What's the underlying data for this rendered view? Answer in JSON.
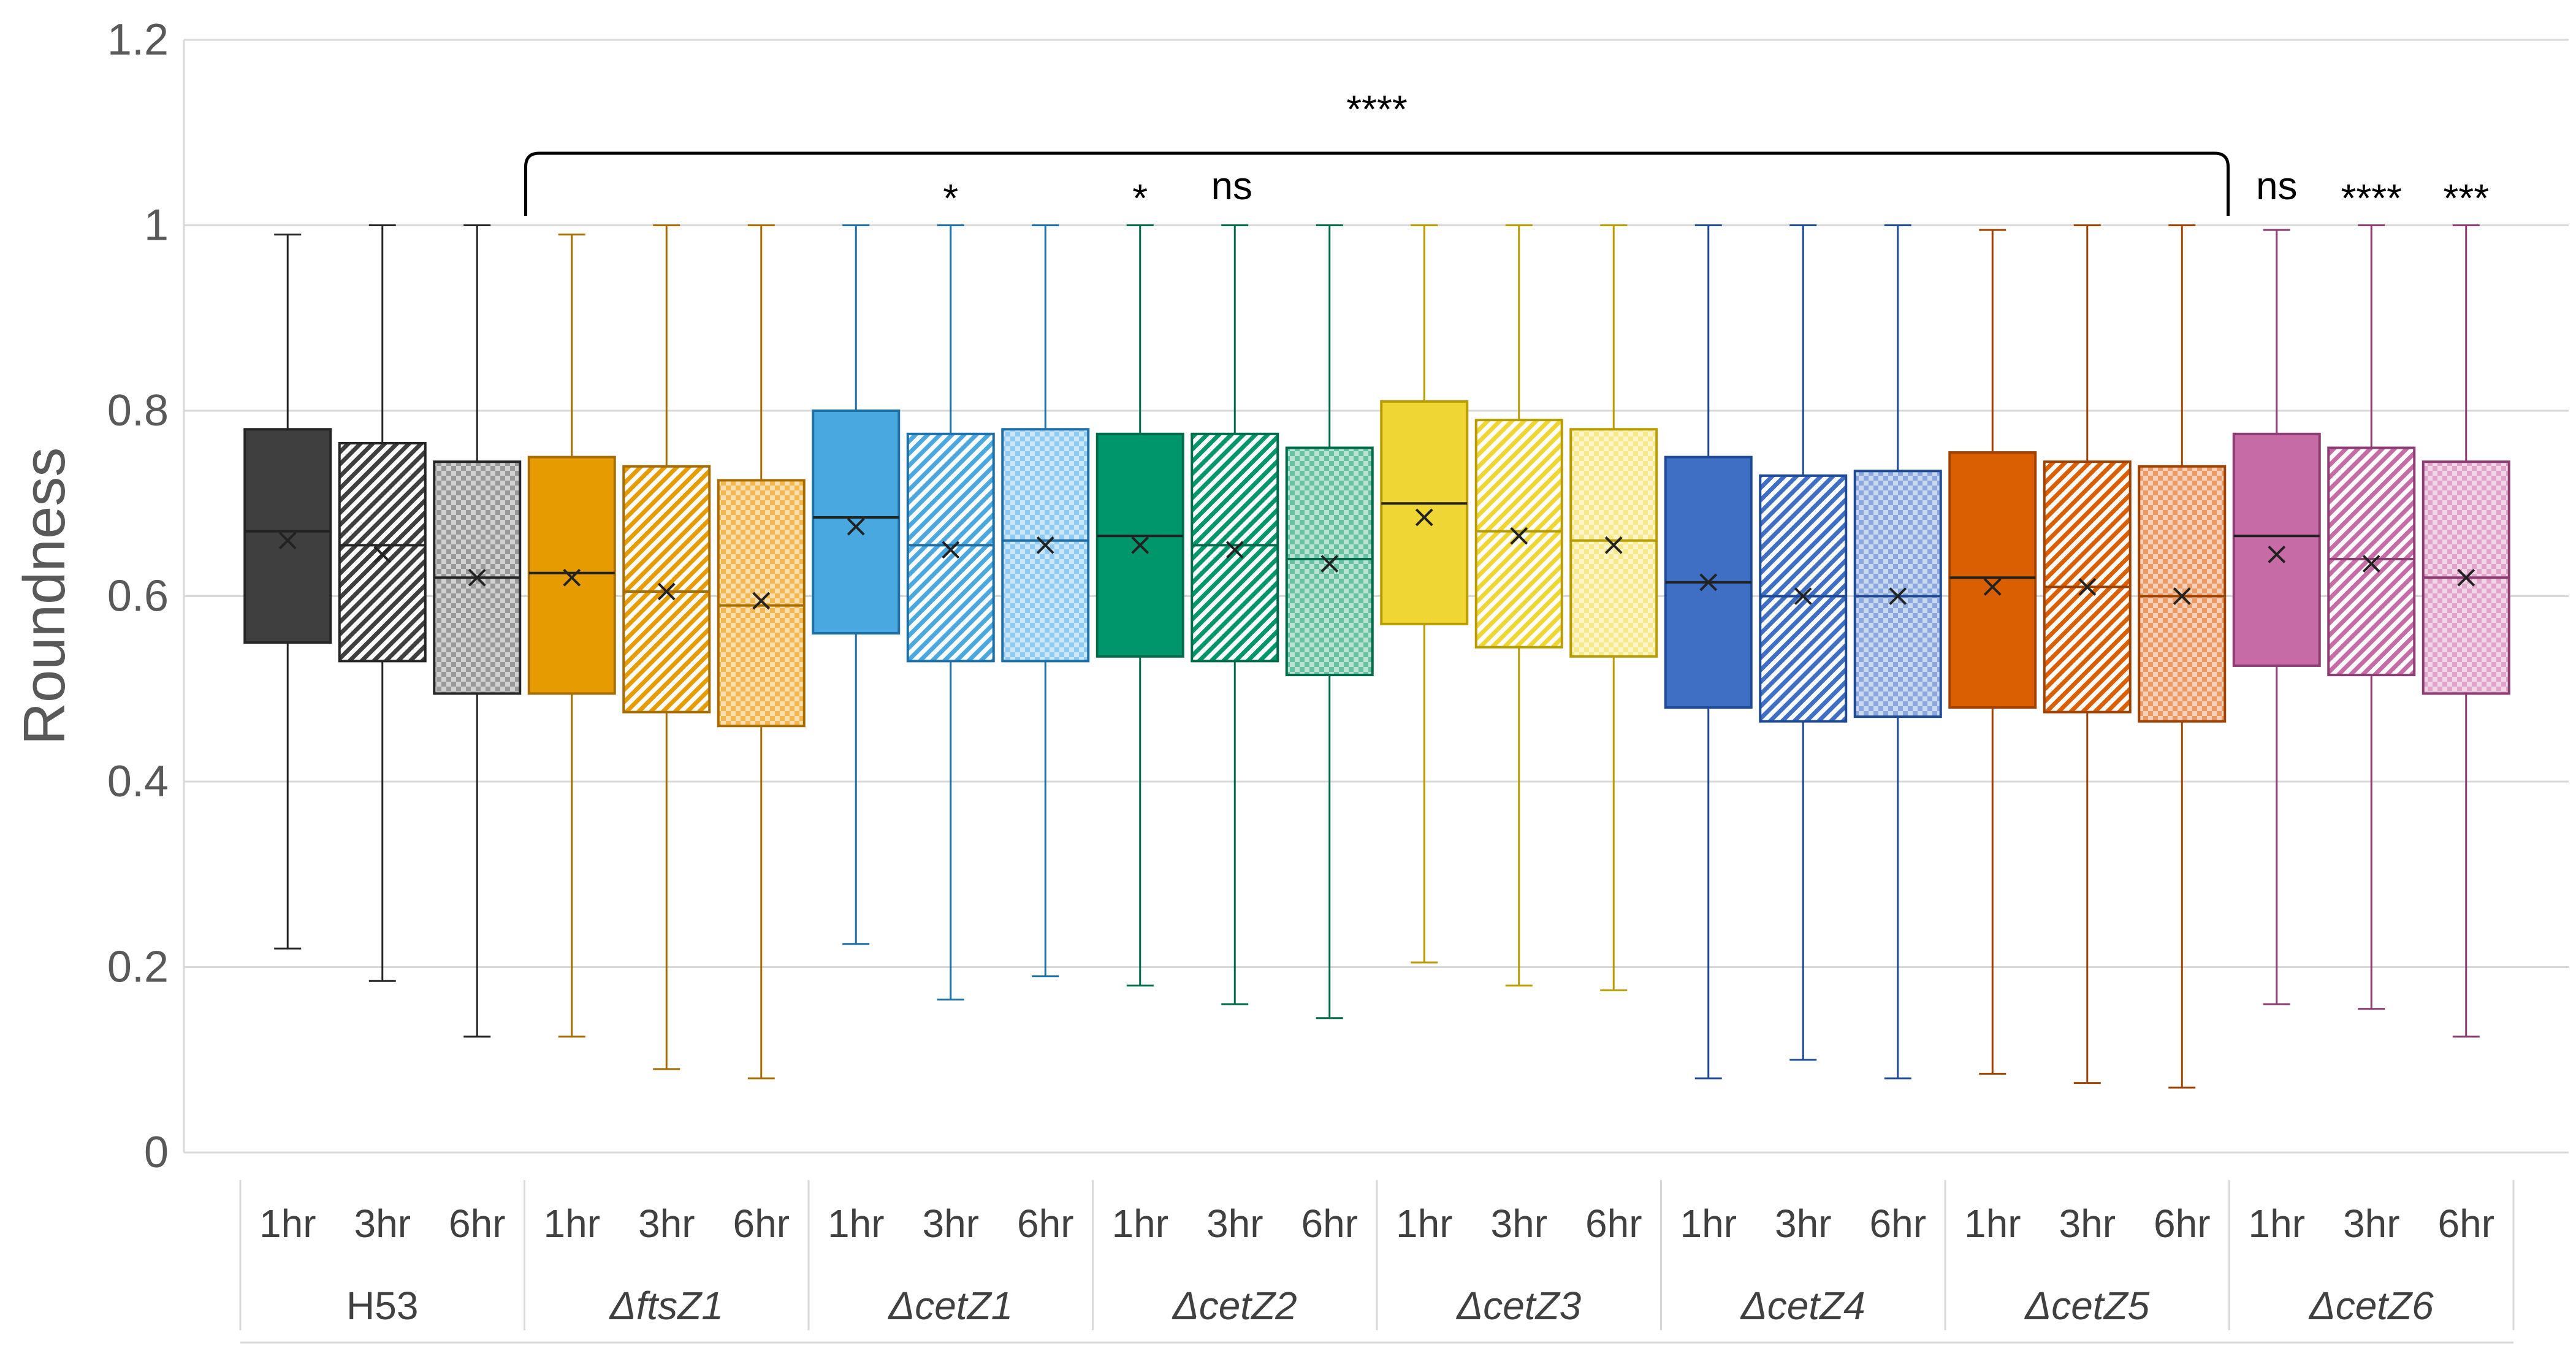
{
  "chart_data": {
    "type": "box",
    "ylabel": "Roundness",
    "xlabel": "",
    "title": "",
    "ylim": [
      0,
      1.2
    ],
    "yticks": [
      "0",
      "0.2",
      "0.4",
      "0.6",
      "0.8",
      "1",
      "1.2"
    ],
    "grid": true,
    "time_labels": [
      "1hr",
      "3hr",
      "6hr"
    ],
    "groups": [
      {
        "name": "H53",
        "italic": false,
        "colors": {
          "fill": "#3f3f3f",
          "light": "#999999",
          "edge": "#262626"
        },
        "boxes": [
          {
            "time": "1hr",
            "min": 0.22,
            "q1": 0.55,
            "median": 0.67,
            "mean": 0.66,
            "q3": 0.78,
            "max": 0.99
          },
          {
            "time": "3hr",
            "min": 0.185,
            "q1": 0.53,
            "median": 0.655,
            "mean": 0.645,
            "q3": 0.765,
            "max": 1.0
          },
          {
            "time": "6hr",
            "min": 0.125,
            "q1": 0.495,
            "median": 0.62,
            "mean": 0.62,
            "q3": 0.745,
            "max": 1.0
          }
        ]
      },
      {
        "name": "ΔftsZ1",
        "italic": true,
        "colors": {
          "fill": "#e69c00",
          "light": "#f2b84d",
          "edge": "#a86d00"
        },
        "boxes": [
          {
            "time": "1hr",
            "min": 0.125,
            "q1": 0.495,
            "median": 0.625,
            "mean": 0.62,
            "q3": 0.75,
            "max": 0.99
          },
          {
            "time": "3hr",
            "min": 0.09,
            "q1": 0.475,
            "median": 0.605,
            "mean": 0.605,
            "q3": 0.74,
            "max": 1.0
          },
          {
            "time": "6hr",
            "min": 0.08,
            "q1": 0.46,
            "median": 0.59,
            "mean": 0.595,
            "q3": 0.725,
            "max": 1.0
          }
        ]
      },
      {
        "name": "ΔcetZ1",
        "italic": true,
        "colors": {
          "fill": "#4aa8e0",
          "light": "#8fcaf0",
          "edge": "#1e6fa5"
        },
        "boxes": [
          {
            "time": "1hr",
            "min": 0.225,
            "q1": 0.56,
            "median": 0.685,
            "mean": 0.675,
            "q3": 0.8,
            "max": 1.0
          },
          {
            "time": "3hr",
            "min": 0.165,
            "q1": 0.53,
            "median": 0.655,
            "mean": 0.65,
            "q3": 0.775,
            "max": 1.0
          },
          {
            "time": "6hr",
            "min": 0.19,
            "q1": 0.53,
            "median": 0.66,
            "mean": 0.655,
            "q3": 0.78,
            "max": 1.0
          }
        ]
      },
      {
        "name": "ΔcetZ2",
        "italic": true,
        "colors": {
          "fill": "#00966b",
          "light": "#66c2a0",
          "edge": "#006b4a"
        },
        "boxes": [
          {
            "time": "1hr",
            "min": 0.18,
            "q1": 0.535,
            "median": 0.665,
            "mean": 0.655,
            "q3": 0.775,
            "max": 1.0
          },
          {
            "time": "3hr",
            "min": 0.16,
            "q1": 0.53,
            "median": 0.655,
            "mean": 0.65,
            "q3": 0.775,
            "max": 1.0
          },
          {
            "time": "6hr",
            "min": 0.145,
            "q1": 0.515,
            "median": 0.64,
            "mean": 0.635,
            "q3": 0.76,
            "max": 1.0
          }
        ]
      },
      {
        "name": "ΔcetZ3",
        "italic": true,
        "colors": {
          "fill": "#f0d634",
          "light": "#f7e888",
          "edge": "#b89c00"
        },
        "boxes": [
          {
            "time": "1hr",
            "min": 0.205,
            "q1": 0.57,
            "median": 0.7,
            "mean": 0.685,
            "q3": 0.81,
            "max": 1.0
          },
          {
            "time": "3hr",
            "min": 0.18,
            "q1": 0.545,
            "median": 0.67,
            "mean": 0.665,
            "q3": 0.79,
            "max": 1.0
          },
          {
            "time": "6hr",
            "min": 0.175,
            "q1": 0.535,
            "median": 0.66,
            "mean": 0.655,
            "q3": 0.78,
            "max": 1.0
          }
        ]
      },
      {
        "name": "ΔcetZ4",
        "italic": true,
        "colors": {
          "fill": "#3e6fc4",
          "light": "#8aa8dd",
          "edge": "#1f4b96"
        },
        "boxes": [
          {
            "time": "1hr",
            "min": 0.08,
            "q1": 0.48,
            "median": 0.615,
            "mean": 0.615,
            "q3": 0.75,
            "max": 1.0
          },
          {
            "time": "3hr",
            "min": 0.1,
            "q1": 0.465,
            "median": 0.6,
            "mean": 0.6,
            "q3": 0.73,
            "max": 1.0
          },
          {
            "time": "6hr",
            "min": 0.08,
            "q1": 0.47,
            "median": 0.6,
            "mean": 0.6,
            "q3": 0.735,
            "max": 1.0
          }
        ]
      },
      {
        "name": "ΔcetZ5",
        "italic": true,
        "colors": {
          "fill": "#d95f02",
          "light": "#ec9a63",
          "edge": "#a04300"
        },
        "boxes": [
          {
            "time": "1hr",
            "min": 0.085,
            "q1": 0.48,
            "median": 0.62,
            "mean": 0.61,
            "q3": 0.755,
            "max": 0.995
          },
          {
            "time": "3hr",
            "min": 0.075,
            "q1": 0.475,
            "median": 0.61,
            "mean": 0.61,
            "q3": 0.745,
            "max": 1.0
          },
          {
            "time": "6hr",
            "min": 0.07,
            "q1": 0.465,
            "median": 0.6,
            "mean": 0.6,
            "q3": 0.74,
            "max": 1.0
          }
        ]
      },
      {
        "name": "ΔcetZ6",
        "italic": true,
        "colors": {
          "fill": "#c76ba6",
          "light": "#e0a3c9",
          "edge": "#8d3d74"
        },
        "boxes": [
          {
            "time": "1hr",
            "min": 0.16,
            "q1": 0.525,
            "median": 0.665,
            "mean": 0.645,
            "q3": 0.775,
            "max": 0.995
          },
          {
            "time": "3hr",
            "min": 0.155,
            "q1": 0.515,
            "median": 0.64,
            "mean": 0.635,
            "q3": 0.76,
            "max": 1.0
          },
          {
            "time": "6hr",
            "min": 0.125,
            "q1": 0.495,
            "median": 0.62,
            "mean": 0.62,
            "q3": 0.745,
            "max": 1.0
          }
        ]
      }
    ],
    "significance": [
      {
        "label": "****",
        "type": "bracket",
        "from_group": 1,
        "from_box": 0,
        "to_group": 7,
        "to_box": 0
      },
      {
        "label": "*",
        "type": "single",
        "group": 2,
        "box": 1
      },
      {
        "label": "*",
        "type": "single",
        "group": 3,
        "box": 0
      },
      {
        "label": "ns",
        "type": "single",
        "group": 3,
        "box": 1
      },
      {
        "label": "ns",
        "type": "single",
        "group": 7,
        "box": 0
      },
      {
        "label": "****",
        "type": "single",
        "group": 7,
        "box": 1
      },
      {
        "label": "***",
        "type": "single",
        "group": 7,
        "box": 2
      }
    ]
  }
}
